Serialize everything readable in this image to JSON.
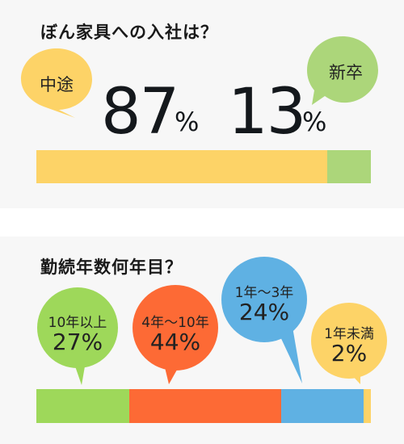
{
  "colors": {
    "yellow": "#fdd367",
    "green_light": "#acd67a",
    "green": "#9ed85a",
    "orange": "#fd6a35",
    "blue": "#5fb1e3"
  },
  "chart_data": [
    {
      "type": "bar",
      "title": "ぼん家具への入社は？",
      "categories": [
        "中途",
        "新卒"
      ],
      "values": [
        87,
        13
      ],
      "unit": "%",
      "stacked": true,
      "orientation": "horizontal"
    },
    {
      "type": "bar",
      "title": "勤続年数何年目？",
      "categories": [
        "10年以上",
        "4年～10年",
        "1年～3年",
        "1年未満"
      ],
      "values": [
        27,
        44,
        24,
        2
      ],
      "value_labels": [
        "27%",
        "44%",
        "24%",
        "2%"
      ],
      "stacked": true,
      "orientation": "horizontal"
    }
  ]
}
